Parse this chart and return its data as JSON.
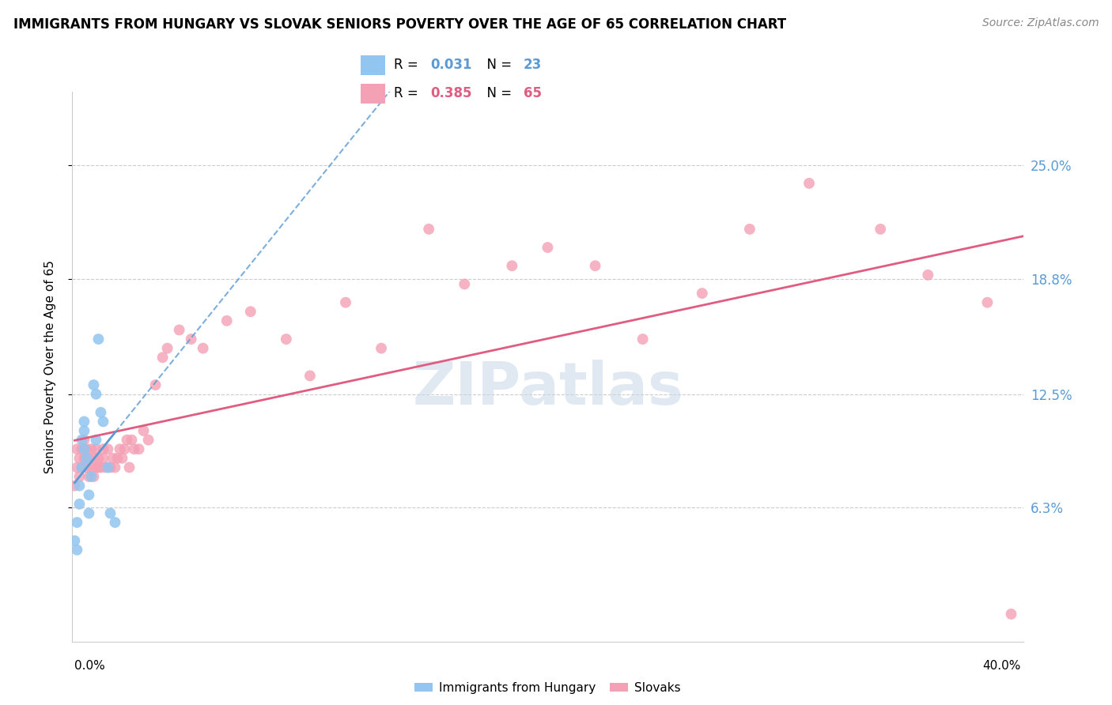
{
  "title": "IMMIGRANTS FROM HUNGARY VS SLOVAK SENIORS POVERTY OVER THE AGE OF 65 CORRELATION CHART",
  "source": "Source: ZipAtlas.com",
  "ylabel": "Seniors Poverty Over the Age of 65",
  "ytick_vals": [
    0.063,
    0.125,
    0.188,
    0.25
  ],
  "ytick_labels": [
    "6.3%",
    "12.5%",
    "18.8%",
    "25.0%"
  ],
  "xlim": [
    0.0,
    0.4
  ],
  "ylim": [
    -0.01,
    0.29
  ],
  "r_hungary": 0.031,
  "n_hungary": 23,
  "r_slovak": 0.385,
  "n_slovak": 65,
  "color_hungary": "#92C5F0",
  "color_slovak": "#F4A0B5",
  "line_color_hungary": "#5B9BD5",
  "line_color_slovak": "#E05C80",
  "watermark": "ZIPatlas",
  "hungary_x": [
    0.001,
    0.002,
    0.002,
    0.003,
    0.003,
    0.004,
    0.004,
    0.005,
    0.005,
    0.005,
    0.006,
    0.007,
    0.007,
    0.008,
    0.009,
    0.01,
    0.01,
    0.011,
    0.012,
    0.013,
    0.015,
    0.016,
    0.018
  ],
  "hungary_y": [
    0.045,
    0.04,
    0.055,
    0.065,
    0.075,
    0.085,
    0.1,
    0.095,
    0.105,
    0.11,
    0.09,
    0.07,
    0.06,
    0.08,
    0.13,
    0.125,
    0.1,
    0.155,
    0.115,
    0.11,
    0.085,
    0.06,
    0.055
  ],
  "slovak_x": [
    0.001,
    0.002,
    0.002,
    0.003,
    0.003,
    0.004,
    0.004,
    0.005,
    0.005,
    0.006,
    0.006,
    0.007,
    0.007,
    0.008,
    0.008,
    0.009,
    0.009,
    0.01,
    0.01,
    0.011,
    0.011,
    0.012,
    0.013,
    0.013,
    0.014,
    0.015,
    0.016,
    0.017,
    0.018,
    0.019,
    0.02,
    0.021,
    0.022,
    0.023,
    0.024,
    0.025,
    0.026,
    0.028,
    0.03,
    0.032,
    0.035,
    0.038,
    0.04,
    0.045,
    0.05,
    0.055,
    0.065,
    0.075,
    0.09,
    0.1,
    0.115,
    0.13,
    0.15,
    0.165,
    0.185,
    0.2,
    0.22,
    0.24,
    0.265,
    0.285,
    0.31,
    0.34,
    0.36,
    0.385,
    0.395
  ],
  "slovak_y": [
    0.075,
    0.085,
    0.095,
    0.09,
    0.08,
    0.085,
    0.095,
    0.09,
    0.1,
    0.085,
    0.095,
    0.08,
    0.09,
    0.085,
    0.095,
    0.08,
    0.09,
    0.085,
    0.095,
    0.085,
    0.09,
    0.085,
    0.09,
    0.095,
    0.085,
    0.095,
    0.085,
    0.09,
    0.085,
    0.09,
    0.095,
    0.09,
    0.095,
    0.1,
    0.085,
    0.1,
    0.095,
    0.095,
    0.105,
    0.1,
    0.13,
    0.145,
    0.15,
    0.16,
    0.155,
    0.15,
    0.165,
    0.17,
    0.155,
    0.135,
    0.175,
    0.15,
    0.215,
    0.185,
    0.195,
    0.205,
    0.195,
    0.155,
    0.18,
    0.215,
    0.24,
    0.215,
    0.19,
    0.175,
    0.005
  ]
}
